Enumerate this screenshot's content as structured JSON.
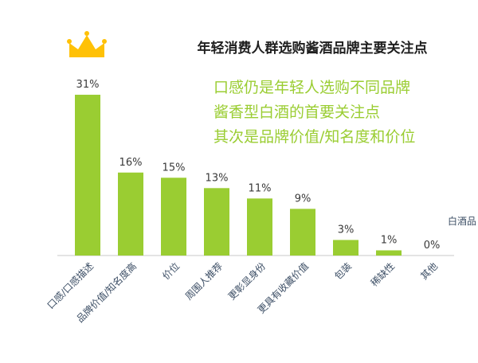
{
  "chart_data": {
    "type": "bar",
    "title": "年轻消费人群选购酱酒品牌主要关注点",
    "annotation": [
      "口感仍是年轻人选购不同品牌",
      "酱香型白酒的首要关注点",
      "其次是品牌价值/知名度和价位"
    ],
    "categories": [
      "口感/口感描述",
      "品牌价值/知名度高",
      "价位",
      "周围人推荐",
      "更彰显身份",
      "更具有收藏价值",
      "包装",
      "稀缺性",
      "其他"
    ],
    "values": [
      31,
      16,
      15,
      13,
      11,
      9,
      3,
      1,
      0
    ],
    "value_labels": [
      "31%",
      "16%",
      "15%",
      "13%",
      "11%",
      "9%",
      "3%",
      "1%",
      "0%"
    ],
    "legend": [
      "白酒品"
    ],
    "ylim": [
      0,
      33
    ],
    "bar_color": "#9acd32",
    "annotation_color": "#9acd32",
    "crown_color": "#ffc107",
    "crown_icon": "crown-icon"
  }
}
